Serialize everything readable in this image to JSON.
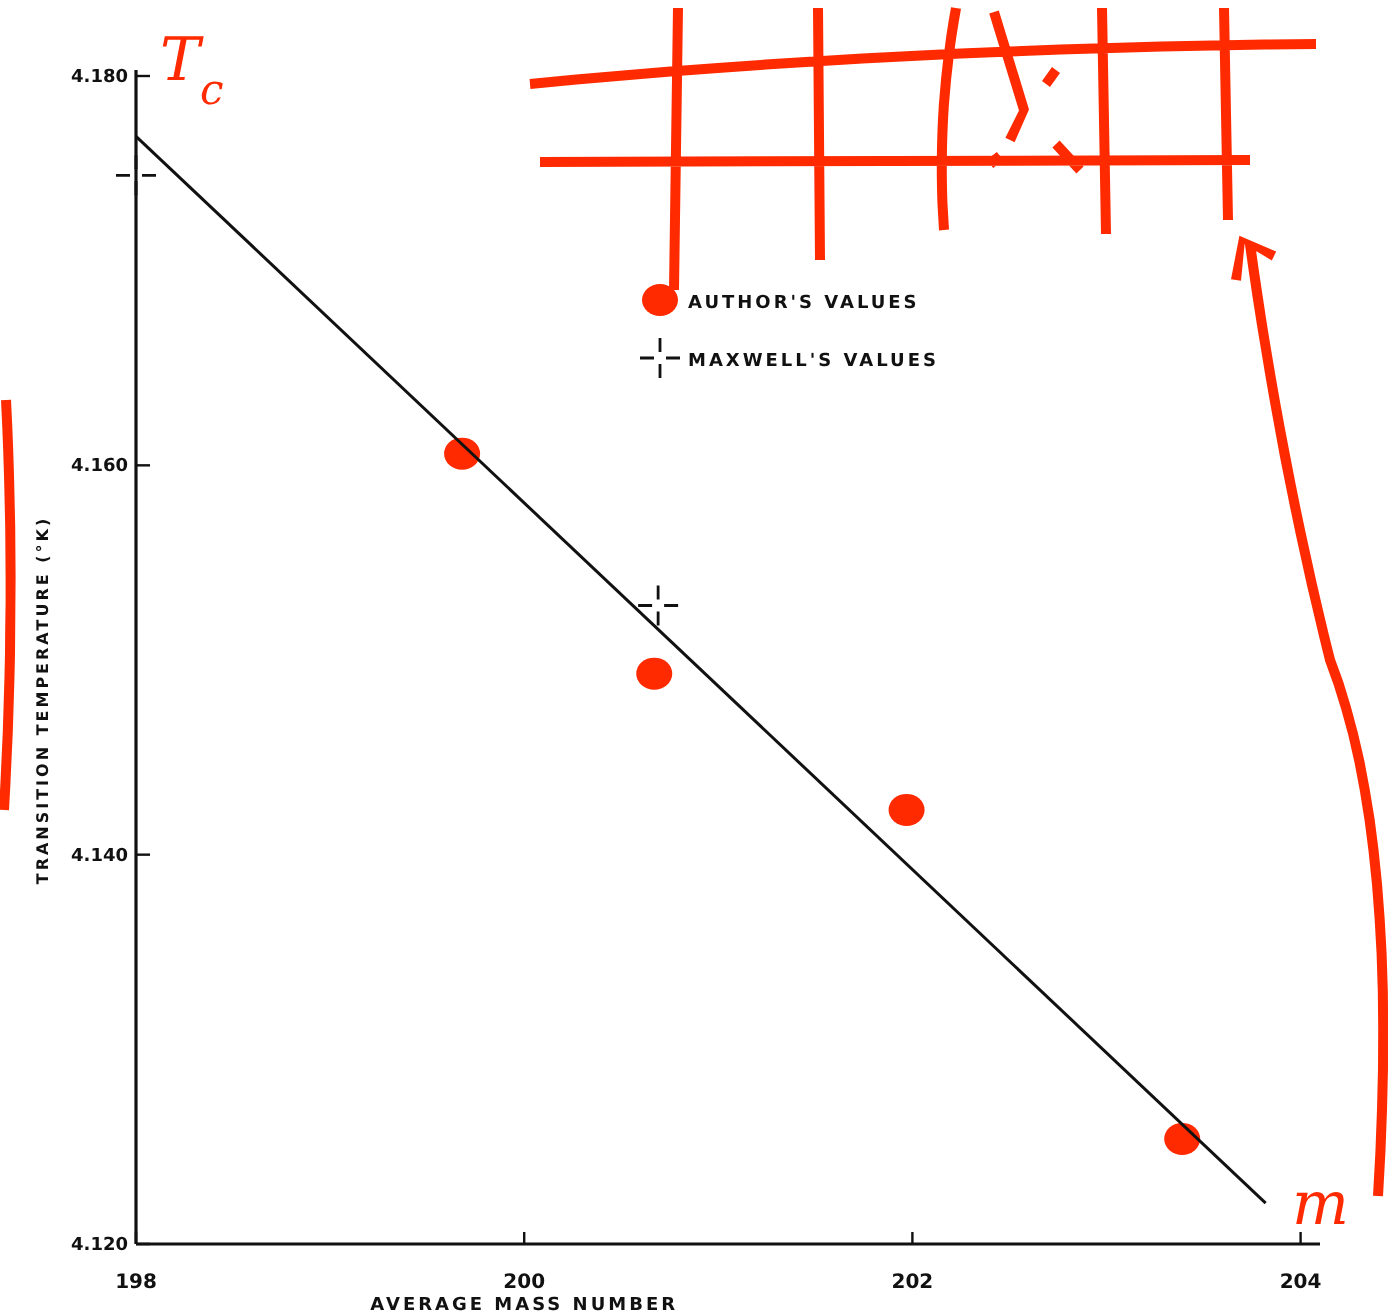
{
  "chart_data": {
    "type": "scatter",
    "xlabel": "AVERAGE MASS NUMBER",
    "ylabel": "TRANSITION TEMPERATURE (°K)",
    "xlim": [
      198,
      204.1
    ],
    "xticks": [
      198,
      200,
      202,
      204
    ],
    "ylim": [
      4.12,
      4.18
    ],
    "yticks": [
      {
        "value": 4.18,
        "label": "4.180"
      },
      {
        "value": 4.16,
        "label": "4.160"
      },
      {
        "value": 4.14,
        "label": "4.140"
      },
      {
        "value": 4.12,
        "label": "4.120"
      }
    ],
    "legend": "top",
    "series": [
      {
        "name": "AUTHOR'S VALUES",
        "marker": "circle",
        "color": "#ff2a00",
        "x": [
          199.68,
          200.67,
          201.97,
          203.39
        ],
        "values": [
          4.1606,
          4.1493,
          4.1423,
          4.1254
        ]
      },
      {
        "name": "MAXWELL'S VALUES",
        "marker": "cross",
        "color": "#111111",
        "x": [
          198.0,
          200.69
        ],
        "values": [
          4.1749,
          4.1528
        ]
      },
      {
        "type": "line",
        "color": "#111111",
        "marker": "none",
        "x": [
          198.0,
          203.82
        ],
        "values": [
          4.1769,
          4.1221
        ]
      }
    ],
    "annotations": [
      "T$_{c}$",
      "m"
    ]
  }
}
